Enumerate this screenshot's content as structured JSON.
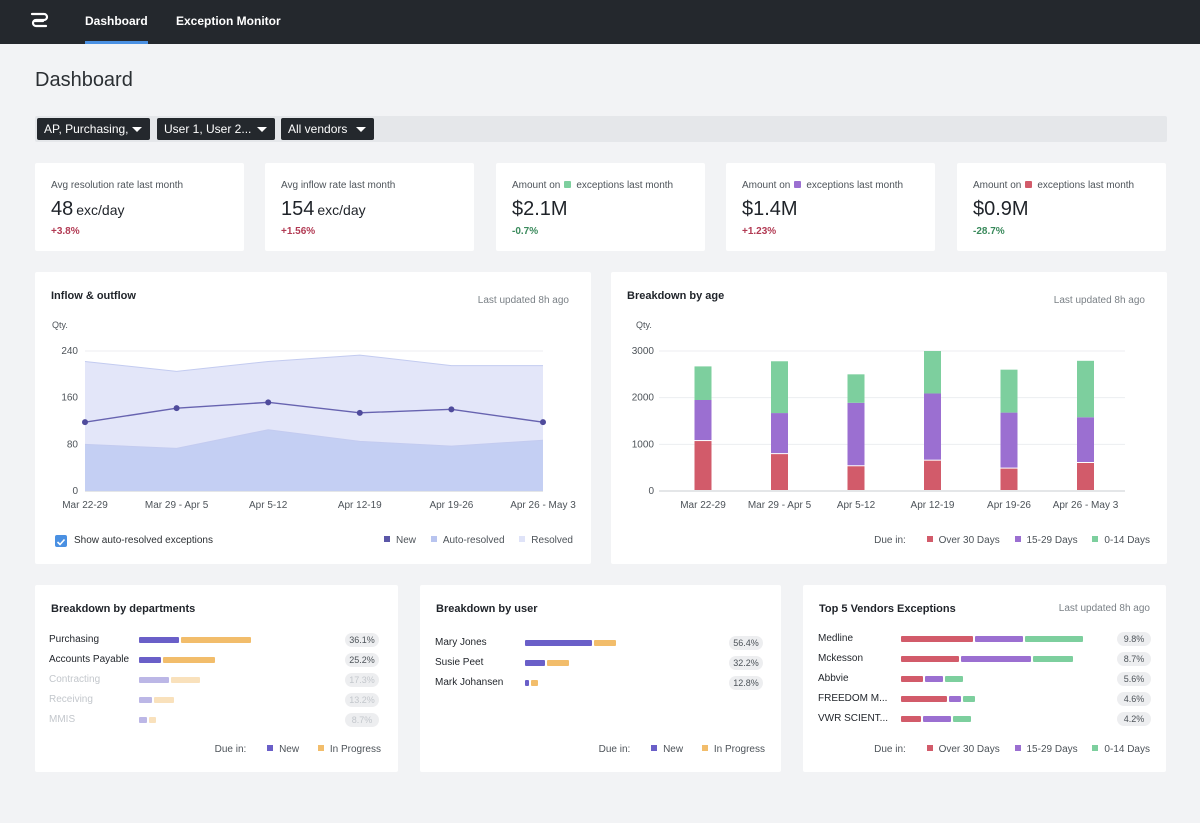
{
  "nav": {
    "logo_icon": "logo-icon",
    "tabs": [
      {
        "label": "Dashboard",
        "active": true
      },
      {
        "label": "Exception Monitor",
        "active": false
      }
    ]
  },
  "page": {
    "title": "Dashboard"
  },
  "filters": [
    {
      "label": "AP, Purchasing,"
    },
    {
      "label": "User 1, User 2..."
    },
    {
      "label": "All vendors"
    }
  ],
  "kpis": [
    {
      "label": "Avg resolution rate last month",
      "value": "48",
      "unit": "exc/day",
      "delta": "+3.8%",
      "trend": "up"
    },
    {
      "label": "Avg inflow rate last month",
      "value": "154",
      "unit": "exc/day",
      "delta": "+1.56%",
      "trend": "up"
    },
    {
      "label_pre": "Amount on",
      "label_post": "exceptions last month",
      "dot_color": "#7dcf9e",
      "value": "$2.1M",
      "delta": "-0.7%",
      "trend": "down"
    },
    {
      "label_pre": "Amount on",
      "label_post": "exceptions last month",
      "dot_color": "#9b6fd1",
      "value": "$1.4M",
      "delta": "+1.23%",
      "trend": "up"
    },
    {
      "label_pre": "Amount on",
      "label_post": "exceptions last month",
      "dot_color": "#d25b6a",
      "value": "$0.9M",
      "delta": "-28.7%",
      "trend": "down"
    }
  ],
  "inflow": {
    "title": "Inflow & outflow",
    "updated": "Last updated 8h ago",
    "checkbox_label": "Show auto-resolved exceptions",
    "checkbox_checked": true,
    "legend": [
      {
        "label": "New",
        "color": "#5b57a8"
      },
      {
        "label": "Auto-resolved",
        "color": "#b8c4ef"
      },
      {
        "label": "Resolved",
        "color": "#dfe3f8"
      }
    ],
    "chart_data": {
      "type": "area",
      "ylabel": "Qty.",
      "yticks": [
        0,
        80,
        160,
        240
      ],
      "ylim": [
        0,
        240
      ],
      "categories": [
        "Mar 22-29",
        "Mar 29 - Apr 5",
        "Apr 5-12",
        "Apr 12-19",
        "Apr 19-26",
        "Apr 26 - May 3"
      ],
      "series": [
        {
          "name": "Resolved",
          "values": [
            222,
            205,
            222,
            233,
            215,
            215
          ]
        },
        {
          "name": "Auto-resolved",
          "values": [
            80,
            73,
            105,
            85,
            77,
            87
          ]
        },
        {
          "name": "New",
          "values": [
            118,
            142,
            152,
            134,
            140,
            118
          ]
        }
      ]
    }
  },
  "age": {
    "title": "Breakdown by age",
    "updated": "Last updated 8h ago",
    "legend_prefix": "Due in:",
    "legend": [
      {
        "label": "Over 30 Days",
        "color": "#d25b6a"
      },
      {
        "label": "15-29 Days",
        "color": "#9b6fd1"
      },
      {
        "label": "0-14 Days",
        "color": "#7dcf9e"
      }
    ],
    "chart_data": {
      "type": "bar",
      "stacked": true,
      "ylabel": "Qty.",
      "yticks": [
        0,
        1000,
        2000,
        3000
      ],
      "ylim": [
        0,
        3000
      ],
      "categories": [
        "Mar 22-29",
        "Mar 29 - Apr 5",
        "Apr 5-12",
        "Apr 12-19",
        "Apr 19-26",
        "Apr 26 - May 3"
      ],
      "series": [
        {
          "name": "Over 30 Days",
          "values": [
            1070,
            790,
            530,
            650,
            480,
            600
          ]
        },
        {
          "name": "15-29 Days",
          "values": [
            880,
            880,
            1360,
            1440,
            1200,
            980
          ]
        },
        {
          "name": "0-14 Days",
          "values": [
            720,
            1110,
            610,
            910,
            920,
            1210
          ]
        }
      ]
    }
  },
  "departments": {
    "title": "Breakdown by departments",
    "legend_prefix": "Due in:",
    "legend": [
      {
        "label": "New",
        "color": "#6a5fc8"
      },
      {
        "label": "In Progress",
        "color": "#f2bd6b"
      }
    ],
    "rows": [
      {
        "label": "Purchasing",
        "new": 0.36,
        "progress": 0.64,
        "pct": "36.1%",
        "dim": false
      },
      {
        "label": "Accounts Payable",
        "new": 0.2,
        "progress": 0.47,
        "pct": "25.2%",
        "dim": false
      },
      {
        "label": "Contracting",
        "new": 0.27,
        "progress": 0.27,
        "pct": "17.3%",
        "dim": true
      },
      {
        "label": "Receiving",
        "new": 0.12,
        "progress": 0.18,
        "pct": "13.2%",
        "dim": true
      },
      {
        "label": "MMIS",
        "new": 0.07,
        "progress": 0.07,
        "pct": "8.7%",
        "dim": true
      }
    ]
  },
  "users": {
    "title": "Breakdown by user",
    "legend_prefix": "Due in:",
    "legend": [
      {
        "label": "New",
        "color": "#6a5fc8"
      },
      {
        "label": "In Progress",
        "color": "#f2bd6b"
      }
    ],
    "rows": [
      {
        "label": "Mary Jones",
        "new": 0.56,
        "progress": 0.18,
        "pct": "56.4%"
      },
      {
        "label": "Susie Peet",
        "new": 0.17,
        "progress": 0.18,
        "pct": "32.2%"
      },
      {
        "label": "Mark Johansen",
        "new": 0.03,
        "progress": 0.06,
        "pct": "12.8%"
      }
    ]
  },
  "vendors": {
    "title": "Top 5 Vendors Exceptions",
    "updated": "Last updated 8h ago",
    "legend_prefix": "Due in:",
    "legend": [
      {
        "label": "Over 30 Days",
        "color": "#d25b6a"
      },
      {
        "label": "15-29 Days",
        "color": "#9b6fd1"
      },
      {
        "label": "0-14 Days",
        "color": "#7dcf9e"
      }
    ],
    "rows": [
      {
        "label": "Medline",
        "a": 0.36,
        "b": 0.24,
        "c": 0.29,
        "pct": "9.8%"
      },
      {
        "label": "Mckesson",
        "a": 0.29,
        "b": 0.35,
        "c": 0.2,
        "pct": "8.7%"
      },
      {
        "label": "Abbvie",
        "a": 0.11,
        "b": 0.09,
        "c": 0.09,
        "pct": "5.6%"
      },
      {
        "label": "FREEDOM M...",
        "a": 0.23,
        "b": 0.06,
        "c": 0.06,
        "pct": "4.6%"
      },
      {
        "label": "VWR SCIENT...",
        "a": 0.1,
        "b": 0.14,
        "c": 0.09,
        "pct": "4.2%"
      }
    ]
  }
}
